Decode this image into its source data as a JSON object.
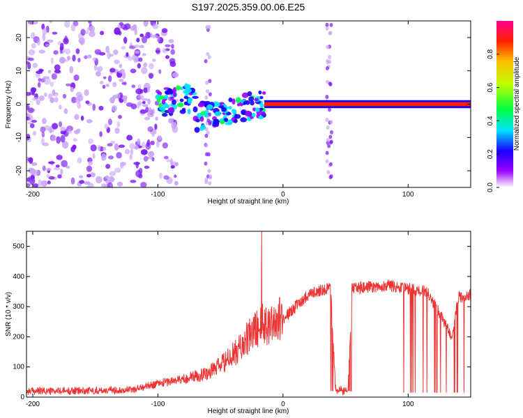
{
  "title": "S197.2025.359.00.06.E25",
  "chart_data": [
    {
      "type": "heatmap",
      "name": "spectrogram",
      "xlabel": "Height of straight line (km)",
      "ylabel": "Frequency (Hz)",
      "xlim": [
        -205,
        150
      ],
      "ylim": [
        -25,
        25
      ],
      "xticks": [
        -200,
        -100,
        0,
        100
      ],
      "yticks": [
        -20,
        -10,
        0,
        10,
        20
      ],
      "colorbar": {
        "label": "Normalized spectral amplitude",
        "range": [
          0,
          1
        ],
        "ticks": [
          0.0,
          0.2,
          0.4,
          0.6,
          0.8
        ]
      },
      "features": [
        {
          "x_range": [
            -205,
            -95
          ],
          "description": "scattered weak noise across all frequencies"
        },
        {
          "x_range": [
            -100,
            -15
          ],
          "freq_center": -5,
          "peak_amplitude": 0.4
        },
        {
          "x_range": [
            -15,
            150
          ],
          "freq_center": 0,
          "peak_amplitude": 0.95
        },
        {
          "x": -60,
          "description": "vertical noise streak"
        },
        {
          "x": 37,
          "description": "vertical noise streak"
        }
      ]
    },
    {
      "type": "line",
      "name": "snr",
      "xlabel": "Height of straight line (km)",
      "ylabel": "SNR (10 * v/v)",
      "xlim": [
        -205,
        150
      ],
      "ylim": [
        0,
        550
      ],
      "xticks": [
        -200,
        -100,
        0,
        100
      ],
      "yticks": [
        0,
        100,
        200,
        300,
        400,
        500
      ],
      "color": "#ee3333",
      "series": [
        {
          "name": "SNR",
          "x": [
            -205,
            -180,
            -150,
            -120,
            -100,
            -80,
            -60,
            -45,
            -35,
            -25,
            -18,
            -10,
            0,
            10,
            20,
            30,
            38,
            42,
            52,
            55,
            70,
            85,
            100,
            115,
            125,
            135,
            140,
            150
          ],
          "y": [
            20,
            20,
            22,
            25,
            45,
            60,
            80,
            120,
            160,
            210,
            240,
            250,
            260,
            300,
            340,
            355,
            360,
            20,
            20,
            360,
            365,
            370,
            360,
            350,
            280,
            200,
            330,
            340
          ]
        }
      ],
      "annotations": [
        {
          "x": -17,
          "y": 550,
          "description": "sharp spike"
        },
        {
          "x_range": [
            40,
            52
          ],
          "description": "dropouts to ~20"
        },
        {
          "x_range": [
            95,
            150
          ],
          "description": "intermittent dropouts"
        }
      ]
    }
  ]
}
